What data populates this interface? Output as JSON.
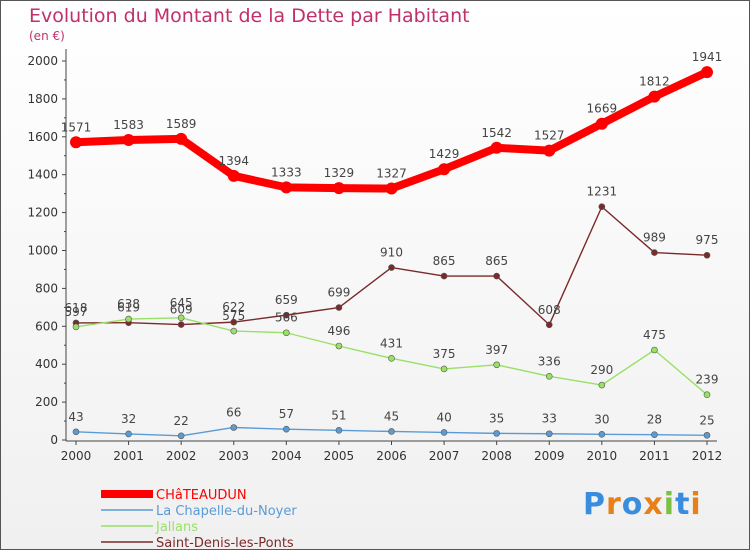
{
  "chart_data": {
    "type": "line",
    "title": "Evolution du Montant de la Dette par Habitant",
    "subtitle": "(en €)",
    "x": [
      "2000",
      "2001",
      "2002",
      "2003",
      "2004",
      "2005",
      "2006",
      "2007",
      "2008",
      "2009",
      "2010",
      "2011",
      "2012"
    ],
    "y_ticks": [
      "0",
      "200",
      "400",
      "600",
      "800",
      "1000",
      "1200",
      "1400",
      "1600",
      "1800",
      "2000"
    ],
    "ylim": [
      0,
      2000
    ],
    "grid": false,
    "legend_position": "bottom-left",
    "series": [
      {
        "name": "Saint-Denis-les-Ponts",
        "color": "#7a2a2a",
        "values": [
          618,
          619,
          609,
          622,
          659,
          699,
          910,
          865,
          865,
          608,
          1231,
          989,
          975
        ]
      },
      {
        "name": "Jallans",
        "color": "#99e066",
        "values": [
          597,
          638,
          645,
          575,
          566,
          496,
          431,
          375,
          397,
          336,
          290,
          475,
          239
        ]
      },
      {
        "name": "La Chapelle-du-Noyer",
        "color": "#5b9bd5",
        "values": [
          43,
          32,
          22,
          66,
          57,
          51,
          45,
          40,
          35,
          33,
          30,
          28,
          25
        ]
      },
      {
        "name": "CHâTEAUDUN",
        "color": "#ff0000",
        "values": [
          1571,
          1583,
          1589,
          1394,
          1333,
          1329,
          1327,
          1429,
          1542,
          1527,
          1669,
          1812,
          1941
        ]
      }
    ],
    "legend": [
      "CHâTEAUDUN",
      "La Chapelle-du-Noyer",
      "Jallans",
      "Saint-Denis-les-Ponts"
    ]
  },
  "logo": {
    "text": "Proxiti"
  }
}
